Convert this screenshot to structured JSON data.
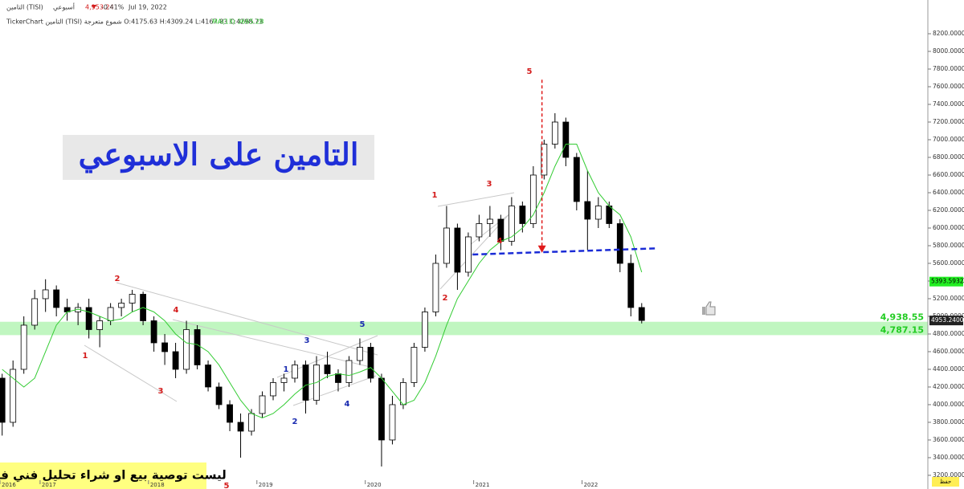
{
  "chart_data": {
    "type": "candlestick",
    "header": {
      "symbol": "التامين (TISI)",
      "period": "أسبوعي",
      "price": "4,953.24",
      "change": "-0.41%",
      "date": "Jul 19, 2022",
      "ohlc_line": "TickerChart التامين (TISI) شموع متعرجة O:4175.63 H:4309.24 L:4167.83 C:4298.73",
      "ma_label": "MA(13) 3665.28"
    },
    "title": "التامين على الاسبوعي",
    "disclaimer": "ليست توصية بيع او شراء تحليل فني فقط",
    "corner_label": "حفظ",
    "x": [
      2016.65,
      2016.75,
      2016.85,
      2016.95,
      2017.05,
      2017.15,
      2017.25,
      2017.35,
      2017.45,
      2017.55,
      2017.65,
      2017.75,
      2017.85,
      2017.95,
      2018.05,
      2018.15,
      2018.25,
      2018.35,
      2018.45,
      2018.55,
      2018.65,
      2018.75,
      2018.85,
      2018.95,
      2019.05,
      2019.15,
      2019.25,
      2019.35,
      2019.45,
      2019.55,
      2019.65,
      2019.75,
      2019.85,
      2019.95,
      2020.05,
      2020.15,
      2020.25,
      2020.35,
      2020.45,
      2020.55,
      2020.65,
      2020.75,
      2020.85,
      2020.95,
      2021.05,
      2021.15,
      2021.25,
      2021.35,
      2021.45,
      2021.55,
      2021.65,
      2021.75,
      2021.85,
      2021.95,
      2022.05,
      2022.15,
      2022.25,
      2022.35,
      2022.45,
      2022.55
    ],
    "open": [
      4300,
      3800,
      4400,
      4900,
      5200,
      5300,
      5100,
      5050,
      5100,
      4850,
      4950,
      5100,
      5150,
      5250,
      4950,
      4700,
      4600,
      4400,
      4850,
      4450,
      4200,
      4000,
      3800,
      3700,
      3900,
      4100,
      4250,
      4300,
      4450,
      4050,
      4450,
      4350,
      4250,
      4500,
      4650,
      4300,
      3600,
      4000,
      4250,
      4650,
      5050,
      5600,
      6000,
      5500,
      5900,
      6050,
      6100,
      5850,
      6250,
      6050,
      6600,
      6950,
      7200,
      6800,
      6300,
      6100,
      6250,
      6050,
      5600,
      5100
    ],
    "high": [
      4350,
      4500,
      5000,
      5300,
      5420,
      5350,
      5200,
      5150,
      5200,
      5000,
      5150,
      5200,
      5300,
      5280,
      5000,
      4800,
      4700,
      4950,
      4900,
      4500,
      4250,
      4050,
      3900,
      3950,
      4150,
      4300,
      4350,
      4500,
      4500,
      4550,
      4600,
      4400,
      4550,
      4750,
      4700,
      4350,
      4100,
      4300,
      4700,
      5100,
      5700,
      6250,
      6050,
      5950,
      6150,
      6250,
      6150,
      6350,
      6300,
      6700,
      7000,
      7300,
      7250,
      6850,
      6650,
      6350,
      6300,
      6100,
      5700,
      5150
    ],
    "low": [
      3650,
      3750,
      4350,
      4850,
      5050,
      5000,
      4950,
      4900,
      4750,
      4650,
      4900,
      5000,
      5050,
      4900,
      4600,
      4450,
      4300,
      4350,
      4400,
      4150,
      3950,
      3700,
      3400,
      3650,
      3850,
      4050,
      4150,
      4250,
      3900,
      4000,
      4300,
      4150,
      4200,
      4450,
      4250,
      3300,
      3550,
      3950,
      4200,
      4600,
      5000,
      5550,
      5300,
      5450,
      5850,
      5900,
      5750,
      5800,
      5950,
      6000,
      6550,
      6900,
      6700,
      6200,
      5750,
      6000,
      6000,
      5500,
      5000,
      4920
    ],
    "close": [
      3800,
      4400,
      4900,
      5200,
      5300,
      5100,
      5050,
      5100,
      4850,
      4950,
      5100,
      5150,
      5250,
      4950,
      4700,
      4600,
      4400,
      4850,
      4450,
      4200,
      4000,
      3800,
      3700,
      3900,
      4100,
      4250,
      4300,
      4450,
      4050,
      4450,
      4350,
      4250,
      4500,
      4650,
      4300,
      3600,
      4000,
      4250,
      4650,
      5050,
      5600,
      6000,
      5500,
      5900,
      6050,
      6100,
      5850,
      6250,
      6050,
      6600,
      6950,
      7200,
      6800,
      6300,
      6100,
      6250,
      6050,
      5600,
      5100,
      4953.24
    ],
    "ma": {
      "color": "#33cc33",
      "values": [
        4400,
        4300,
        4200,
        4300,
        4600,
        4900,
        5050,
        5080,
        5050,
        5000,
        4950,
        4970,
        5050,
        5100,
        5050,
        4950,
        4800,
        4700,
        4680,
        4600,
        4450,
        4250,
        4050,
        3900,
        3850,
        3900,
        4000,
        4120,
        4220,
        4250,
        4320,
        4350,
        4330,
        4370,
        4420,
        4300,
        4150,
        4000,
        4050,
        4250,
        4550,
        4900,
        5200,
        5400,
        5600,
        5750,
        5850,
        5900,
        6000,
        6150,
        6400,
        6700,
        6950,
        6950,
        6650,
        6400,
        6250,
        6150,
        5900,
        5500
      ]
    },
    "up_color": "#ffffff",
    "down_color": "#000000",
    "zone": {
      "color": "#b9f5b9",
      "low": {
        "value": 4787.15,
        "label": "4,787.15"
      },
      "high": {
        "value": 4938.55,
        "label": "4,938.55"
      }
    },
    "last_price": {
      "value": 4953.24,
      "label": "4953.2400"
    },
    "ma_tag": {
      "value": 5393.5932,
      "label": "5393.5932"
    },
    "neckline": {
      "x": [
        2020.99,
        2022.7
      ],
      "values": [
        5700,
        5770
      ],
      "color": "#1a2bd6"
    },
    "arrow": {
      "x": 2021.63,
      "values": [
        7680,
        5720
      ],
      "color": "#e01b1b"
    },
    "waves": [
      {
        "text": "1",
        "color": "#d41c1c"
      },
      {
        "text": "2",
        "color": "#d41c1c"
      },
      {
        "text": "3",
        "color": "#d41c1c"
      },
      {
        "text": "4",
        "color": "#d41c1c"
      },
      {
        "text": "5",
        "color": "#d41c1c"
      },
      {
        "text": "1",
        "color": "#1a2bb0"
      },
      {
        "text": "2",
        "color": "#1a2bb0"
      },
      {
        "text": "3",
        "color": "#1a2bb0"
      },
      {
        "text": "4",
        "color": "#1a2bb0"
      },
      {
        "text": "5",
        "color": "#1a2bb0"
      },
      {
        "text": "1",
        "color": "#d41c1c"
      },
      {
        "text": "2",
        "color": "#d41c1c"
      },
      {
        "text": "3",
        "color": "#d41c1c"
      },
      {
        "text": "4",
        "color": "#d41c1c"
      },
      {
        "text": "5",
        "color": "#d41c1c"
      }
    ],
    "xlim": [
      2016.63,
      2025.19
    ],
    "ylim": [
      3045,
      8582
    ],
    "xticks": [
      {
        "value": 2016.63,
        "label": "2016"
      },
      2017,
      2018,
      2019,
      2020,
      2021,
      2022
    ],
    "yticks": [
      {
        "value": 3200,
        "label": "3200.0000"
      },
      {
        "value": 3400,
        "label": "3400.0000"
      },
      {
        "value": 3600,
        "label": "3600.0000"
      },
      {
        "value": 3800,
        "label": "3800.0000"
      },
      {
        "value": 4000,
        "label": "4000.0000"
      },
      {
        "value": 4200,
        "label": "4200.0000"
      },
      {
        "value": 4400,
        "label": "4400.0000"
      },
      {
        "value": 4600,
        "label": "4600.0000"
      },
      {
        "value": 4800,
        "label": "4800.0000"
      },
      {
        "value": 5000,
        "label": "5000.0000"
      },
      {
        "value": 5200,
        "label": "5200.0000"
      },
      {
        "value": 5400,
        "label": "5400.0000"
      },
      {
        "value": 5600,
        "label": "5600.0000"
      },
      {
        "value": 5800,
        "label": "5800.0000"
      },
      {
        "value": 6000,
        "label": "6000.0000"
      },
      {
        "value": 6200,
        "label": "6200.0000"
      },
      {
        "value": 6400,
        "label": "6400.0000"
      },
      {
        "value": 6600,
        "label": "6600.0000"
      },
      {
        "value": 6800,
        "label": "6800.0000"
      },
      {
        "value": 7000,
        "label": "7000.0000"
      },
      {
        "value": 7200,
        "label": "7200.0000"
      },
      {
        "value": 7400,
        "label": "7400.0000"
      },
      {
        "value": 7600,
        "label": "7600.0000"
      },
      {
        "value": 7800,
        "label": "7800.0000"
      },
      {
        "value": 8000,
        "label": "8000.0000"
      },
      {
        "value": 8200,
        "label": "8200.0000"
      }
    ]
  }
}
